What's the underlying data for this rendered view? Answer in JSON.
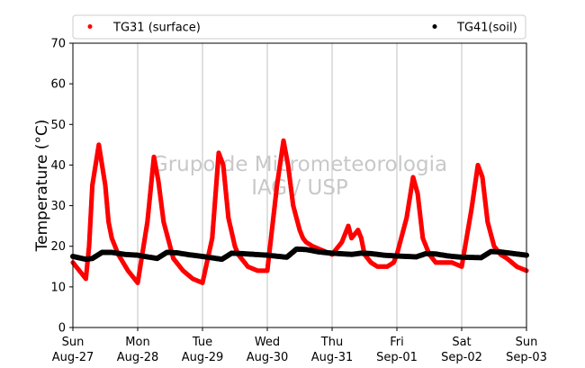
{
  "chart_data": {
    "type": "scatter",
    "ylabel": "Temperature (°C)",
    "ylim": [
      0,
      70
    ],
    "yticks": [
      0,
      10,
      20,
      30,
      40,
      50,
      60,
      70
    ],
    "xlim_days": [
      0,
      7
    ],
    "xticks": [
      {
        "line1": "Sun",
        "line2": "Aug-27"
      },
      {
        "line1": "Mon",
        "line2": "Aug-28"
      },
      {
        "line1": "Tue",
        "line2": "Aug-29"
      },
      {
        "line1": "Wed",
        "line2": "Aug-30"
      },
      {
        "line1": "Thu",
        "line2": "Aug-31"
      },
      {
        "line1": "Fri",
        "line2": "Sep-01"
      },
      {
        "line1": "Sat",
        "line2": "Sep-02"
      },
      {
        "line1": "Sun",
        "line2": "Sep-03"
      }
    ],
    "grid": "vertical",
    "legend_position": "top",
    "watermark": [
      "Grupo de Micrometeorologia",
      "IAG / USP"
    ],
    "series": [
      {
        "name": "TG31 (surface)",
        "color": "#ff0000",
        "x_days": [
          0.0,
          0.1,
          0.2,
          0.25,
          0.3,
          0.4,
          0.5,
          0.55,
          0.6,
          0.7,
          0.85,
          1.0,
          1.15,
          1.25,
          1.32,
          1.4,
          1.5,
          1.55,
          1.6,
          1.7,
          1.85,
          2.0,
          2.15,
          2.25,
          2.32,
          2.4,
          2.5,
          2.55,
          2.6,
          2.7,
          2.85,
          3.0,
          3.15,
          3.25,
          3.32,
          3.4,
          3.5,
          3.55,
          3.6,
          3.7,
          3.85,
          4.0,
          4.15,
          4.25,
          4.3,
          4.4,
          4.45,
          4.5,
          4.55,
          4.6,
          4.7,
          4.85,
          4.95,
          5.0,
          5.15,
          5.25,
          5.32,
          5.4,
          5.5,
          5.55,
          5.6,
          5.7,
          5.85,
          6.0,
          6.15,
          6.25,
          6.32,
          6.4,
          6.5,
          6.55,
          6.6,
          6.7,
          6.85,
          7.0
        ],
        "y": [
          16,
          14,
          12,
          20,
          35,
          45,
          35,
          26,
          22,
          18,
          14,
          11,
          26,
          42,
          36,
          26,
          20,
          17,
          16,
          14,
          12,
          11,
          22,
          43,
          40,
          27,
          20,
          18,
          17,
          15,
          14,
          14,
          35,
          46,
          40,
          30,
          24,
          22,
          21,
          20,
          19,
          18,
          21,
          25,
          22,
          24,
          22,
          18,
          17,
          16,
          15,
          15,
          16,
          18,
          27,
          37,
          33,
          22,
          18,
          17,
          16,
          16,
          16,
          15,
          29,
          40,
          37,
          26,
          20,
          19,
          18,
          17,
          15,
          14
        ]
      },
      {
        "name": "TG41(soil)",
        "color": "#000000",
        "x_days": [
          0.0,
          0.2,
          0.3,
          0.45,
          0.6,
          0.8,
          1.0,
          1.3,
          1.45,
          1.6,
          1.8,
          2.0,
          2.3,
          2.45,
          2.6,
          2.8,
          3.0,
          3.3,
          3.45,
          3.6,
          3.8,
          4.0,
          4.3,
          4.45,
          4.6,
          4.8,
          5.0,
          5.3,
          5.45,
          5.6,
          5.8,
          6.0,
          6.3,
          6.45,
          6.6,
          6.8,
          7.0
        ],
        "y": [
          17.5,
          16.8,
          17,
          18.5,
          18.5,
          18,
          17.8,
          17,
          18.5,
          18.4,
          17.9,
          17.5,
          16.8,
          18.3,
          18.2,
          18,
          17.8,
          17.3,
          19.3,
          19.2,
          18.6,
          18.3,
          18,
          18.3,
          18.2,
          17.8,
          17.6,
          17.4,
          18.2,
          18.1,
          17.6,
          17.3,
          17.2,
          18.7,
          18.6,
          18.2,
          17.8
        ]
      }
    ]
  }
}
